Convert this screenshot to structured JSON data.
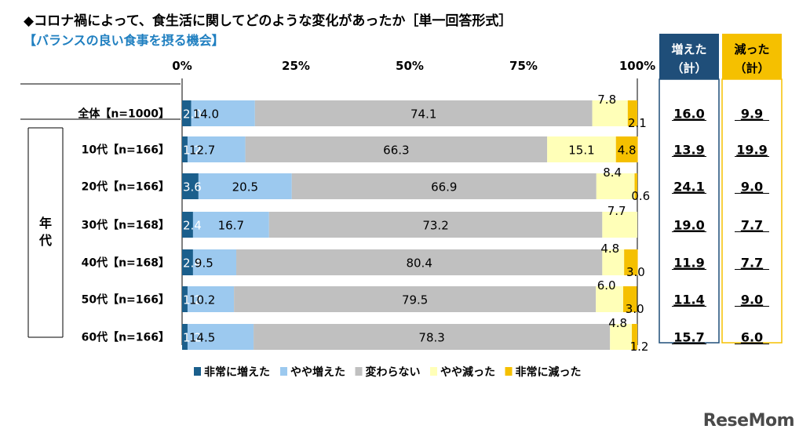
{
  "title": "◆コロナ禍によって、食生活に関してどのような変化があったか［単一回答形式］",
  "subtitle": "【バランスの良い食事を摂る機会】",
  "brand": "ReseMom",
  "chart_data": {
    "type": "bar",
    "orientation": "horizontal-stacked-100",
    "xlim": [
      0,
      100
    ],
    "x_ticks": [
      "0%",
      "25%",
      "50%",
      "75%",
      "100%"
    ],
    "group_label": "年代",
    "categories": [
      "全体【n=1000】",
      "10代【n=166】",
      "20代【n=166】",
      "30代【n=168】",
      "40代【n=168】",
      "50代【n=166】",
      "60代【n=166】"
    ],
    "series": [
      {
        "name": "非常に増えた",
        "color": "#1b5f8c",
        "values": [
          2.0,
          1.2,
          3.6,
          2.4,
          2.4,
          1.2,
          1.2
        ]
      },
      {
        "name": "やや増えた",
        "color": "#9cc9ef",
        "values": [
          14.0,
          12.7,
          20.5,
          16.7,
          9.5,
          10.2,
          14.5
        ]
      },
      {
        "name": "変わらない",
        "color": "#c0c0c0",
        "values": [
          74.1,
          66.3,
          66.9,
          73.2,
          80.4,
          79.5,
          78.3
        ]
      },
      {
        "name": "やや減った",
        "color": "#ffffb8",
        "values": [
          7.8,
          15.1,
          8.4,
          7.7,
          4.8,
          6.0,
          4.8
        ]
      },
      {
        "name": "非常に減った",
        "color": "#f5c000",
        "values": [
          2.1,
          4.8,
          0.6,
          null,
          3.0,
          3.0,
          1.2
        ]
      }
    ],
    "legend_position": "bottom",
    "summary_columns": [
      {
        "header": [
          "増えた",
          "（計）"
        ],
        "header_color": "#1f4e79",
        "border_color": "#1f4e79",
        "values": [
          "16.0",
          "13.9",
          "24.1",
          "19.0",
          "11.9",
          "11.4",
          "15.7"
        ]
      },
      {
        "header": [
          "減った",
          "（計）"
        ],
        "header_color": "#f5c000",
        "border_color": "#f5c000",
        "values": [
          "9.9",
          "19.9",
          "9.0",
          "7.7",
          "7.7",
          "9.0",
          "6.0"
        ]
      }
    ]
  }
}
